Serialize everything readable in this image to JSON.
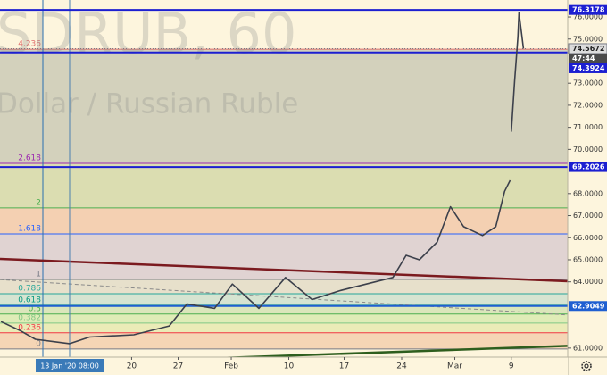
{
  "chart_data": {
    "type": "line",
    "watermark": [
      "SDRUB, 60",
      "Dollar / Russian Ruble"
    ],
    "x": [
      -6.2,
      -4.5,
      -3.1,
      0,
      1.8,
      5.8,
      9.0,
      10.6,
      13.1,
      14.7,
      17.1,
      19.5,
      21.9,
      24.4,
      26.8,
      29.2,
      30.4,
      31.6,
      33.2,
      34.4,
      35.6,
      37.3,
      38.5,
      39.3,
      39.8,
      39.85,
      39.9,
      40.2,
      40.5,
      40.6,
      41.0
    ],
    "values": [
      62.2,
      61.8,
      61.4,
      61.2,
      61.5,
      61.6,
      62.0,
      63.0,
      62.8,
      63.9,
      62.8,
      64.2,
      63.2,
      63.6,
      63.9,
      64.2,
      65.2,
      65.0,
      65.8,
      67.4,
      66.5,
      66.1,
      66.5,
      68.1,
      68.6,
      null,
      70.8,
      73.1,
      75.1,
      76.2,
      74.57
    ],
    "color": "#3c404b",
    "xlim": [
      -6.29,
      45
    ],
    "ylim": [
      60.59,
      76.77
    ],
    "xticks": [
      {
        "value": 5.6,
        "label": "20"
      },
      {
        "value": 9.8,
        "label": "27"
      },
      {
        "value": 14.6,
        "label": "Feb"
      },
      {
        "value": 19.8,
        "label": "10"
      },
      {
        "value": 24.8,
        "label": "17"
      },
      {
        "value": 30,
        "label": "24"
      },
      {
        "value": 34.8,
        "label": "Mar"
      },
      {
        "value": 39.9,
        "label": "9"
      }
    ],
    "yticks": [
      {
        "value": 76,
        "label": "76.0000"
      },
      {
        "value": 75,
        "label": "75.0000"
      },
      {
        "value": 73,
        "label": "73.0000"
      },
      {
        "value": 72,
        "label": "72.0000"
      },
      {
        "value": 71,
        "label": "71.0000"
      },
      {
        "value": 70,
        "label": "70.0000"
      },
      {
        "value": 68,
        "label": "68.0000"
      },
      {
        "value": 67,
        "label": "67.0000"
      },
      {
        "value": 66,
        "label": "66.0000"
      },
      {
        "value": 65,
        "label": "65.0000"
      },
      {
        "value": 64,
        "label": "64.0000"
      },
      {
        "value": 61,
        "label": "61.0000"
      }
    ],
    "crosshair": {
      "x": 0,
      "label": "13 Jan '20 08:00"
    },
    "fib_levels": [
      {
        "ratio": 4.236,
        "price": 74.54,
        "color": "#e0706e",
        "fill": "#cbcab6"
      },
      {
        "ratio": 2.618,
        "price": 69.37,
        "color": "#9c27b0",
        "fill": "#d5d8a9"
      },
      {
        "ratio": 2,
        "price": 67.35,
        "color": "#4caf50",
        "fill": "#f2c9aa"
      },
      {
        "ratio": 1.618,
        "price": 66.17,
        "color": "#2962ff",
        "fill": "#dacdd0"
      },
      {
        "ratio": 1,
        "price": 64.11,
        "color": "#787b86",
        "fill": "#e3dcc8"
      },
      {
        "ratio": 0.786,
        "price": 63.46,
        "color": "#26a69a",
        "fill": "#cfe0cf"
      },
      {
        "ratio": 0.618,
        "price": 62.94,
        "color": "#089981",
        "fill": "#d5e3b5"
      },
      {
        "ratio": 0.5,
        "price": 62.54,
        "color": "#4caf50",
        "fill": "#d9eab0"
      },
      {
        "ratio": 0.382,
        "price": 62.13,
        "color": "#81c784",
        "fill": "#e8e9b0"
      },
      {
        "ratio": 0.236,
        "price": 61.69,
        "color": "#f23645",
        "fill": "#f3cfae"
      },
      {
        "ratio": 0,
        "price": 60.96,
        "color": "#787b86"
      }
    ],
    "trendlines": [
      {
        "y": [
          65.04,
          64.03
        ],
        "color": "#7b1a1f",
        "width": 2.5
      },
      {
        "y": [
          64.1,
          62.5
        ],
        "color": "#8a8a8a",
        "width": 1,
        "dashed": true
      },
      {
        "y": [
          60.2,
          61.1
        ],
        "color": "#2e5e1e",
        "width": 2.5
      }
    ],
    "price_lines": [
      {
        "value": 76.3178,
        "color": "#1c1fd1"
      },
      {
        "value": 74.3924,
        "color": "#1c1fd1"
      },
      {
        "value": 69.2026,
        "color": "#1c1fd1"
      },
      {
        "value": 62.9049,
        "color": "#1f5fd1"
      }
    ],
    "last_price": {
      "value": 74.5672,
      "countdown": "47:44",
      "color": "#787b86"
    }
  }
}
